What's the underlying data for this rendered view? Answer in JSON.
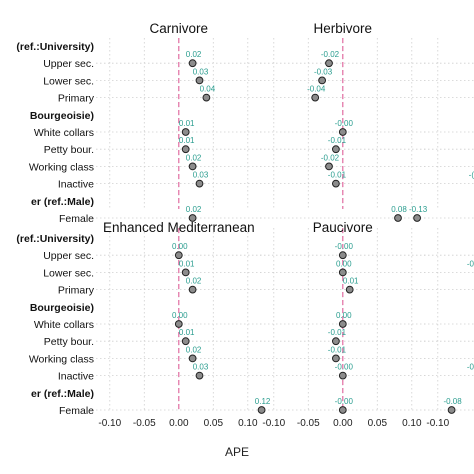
{
  "chart_data": {
    "type": "scatter",
    "xlabel": "APE",
    "xlim": [
      -0.12,
      0.12
    ],
    "x_ticks": [
      -0.1,
      -0.05,
      0.0,
      0.05,
      0.1
    ],
    "tick_labels": [
      "-0.10",
      "-0.05",
      "0.00",
      "0.05",
      "0.10"
    ],
    "grid": true,
    "rows": [
      {
        "label": "(ref.:University)",
        "header": true
      },
      {
        "label": "Upper sec.",
        "header": false
      },
      {
        "label": "Lower sec.",
        "header": false
      },
      {
        "label": "Primary",
        "header": false
      },
      {
        "label": "Bourgeoisie)",
        "header": true
      },
      {
        "label": "White collars",
        "header": false
      },
      {
        "label": "Petty bour.",
        "header": false
      },
      {
        "label": "Working class",
        "header": false
      },
      {
        "label": "Inactive",
        "header": false
      },
      {
        "label": "er (ref.:Male)",
        "header": true
      },
      {
        "label": "Female",
        "header": false
      }
    ],
    "panels": [
      {
        "title": "Carnivore",
        "points": [
          {
            "x": 0.02,
            "label": "0.02"
          },
          {
            "x": 0.03,
            "label": "0.03"
          },
          {
            "x": 0.04,
            "label": "0.04"
          },
          {
            "x": 0.01,
            "label": "0.01"
          },
          {
            "x": 0.01,
            "label": "0.01"
          },
          {
            "x": 0.02,
            "label": "0.02"
          },
          {
            "x": 0.03,
            "label": "0.03"
          },
          {
            "x": 0.02,
            "label": "0.02"
          }
        ]
      },
      {
        "title": "Herbivore",
        "points": [
          {
            "x": -0.02,
            "label": "-0.02"
          },
          {
            "x": -0.03,
            "label": "-0.03"
          },
          {
            "x": -0.04,
            "label": "-0.04"
          },
          {
            "x": 0.0,
            "label": "-0.00"
          },
          {
            "x": -0.01,
            "label": "-0.01"
          },
          {
            "x": -0.02,
            "label": "-0.02"
          },
          {
            "x": -0.01,
            "label": "-0.01"
          },
          {
            "x": 0.08,
            "label": "0.08"
          }
        ]
      },
      {
        "title": "H",
        "points": [
          {
            "x": null,
            "label": ""
          },
          {
            "x": null,
            "label": ""
          },
          {
            "x": null,
            "label": ""
          },
          {
            "x": null,
            "label": ""
          },
          {
            "x": null,
            "label": ""
          },
          {
            "x": null,
            "label": ""
          },
          {
            "x": null,
            "label": "-("
          },
          {
            "x": -0.13,
            "label": "-0.13"
          }
        ]
      },
      {
        "title": "Enhanced Mediterranean",
        "points": [
          {
            "x": 0.0,
            "label": "0.00"
          },
          {
            "x": 0.01,
            "label": "0.01"
          },
          {
            "x": 0.02,
            "label": "0.02"
          },
          {
            "x": 0.0,
            "label": "0.00"
          },
          {
            "x": 0.01,
            "label": "0.01"
          },
          {
            "x": 0.02,
            "label": "0.02"
          },
          {
            "x": 0.03,
            "label": "0.03"
          },
          {
            "x": 0.12,
            "label": "0.12"
          }
        ]
      },
      {
        "title": "Paucivore",
        "points": [
          {
            "x": -0.0,
            "label": "-0.00"
          },
          {
            "x": 0.0,
            "label": "0.00"
          },
          {
            "x": 0.01,
            "label": "0.01"
          },
          {
            "x": 0.0,
            "label": "0.00"
          },
          {
            "x": -0.01,
            "label": "-0.01"
          },
          {
            "x": -0.01,
            "label": "-0.01"
          },
          {
            "x": -0.0,
            "label": "-0.00"
          },
          {
            "x": -0.0,
            "label": "-0.00"
          }
        ]
      },
      {
        "title": "C",
        "points": [
          {
            "x": null,
            "label": ""
          },
          {
            "x": null,
            "label": "-0"
          },
          {
            "x": null,
            "label": ""
          },
          {
            "x": null,
            "label": ""
          },
          {
            "x": null,
            "label": ""
          },
          {
            "x": null,
            "label": ""
          },
          {
            "x": null,
            "label": "-0"
          },
          {
            "x": -0.08,
            "label": "-0.08"
          }
        ]
      }
    ]
  }
}
